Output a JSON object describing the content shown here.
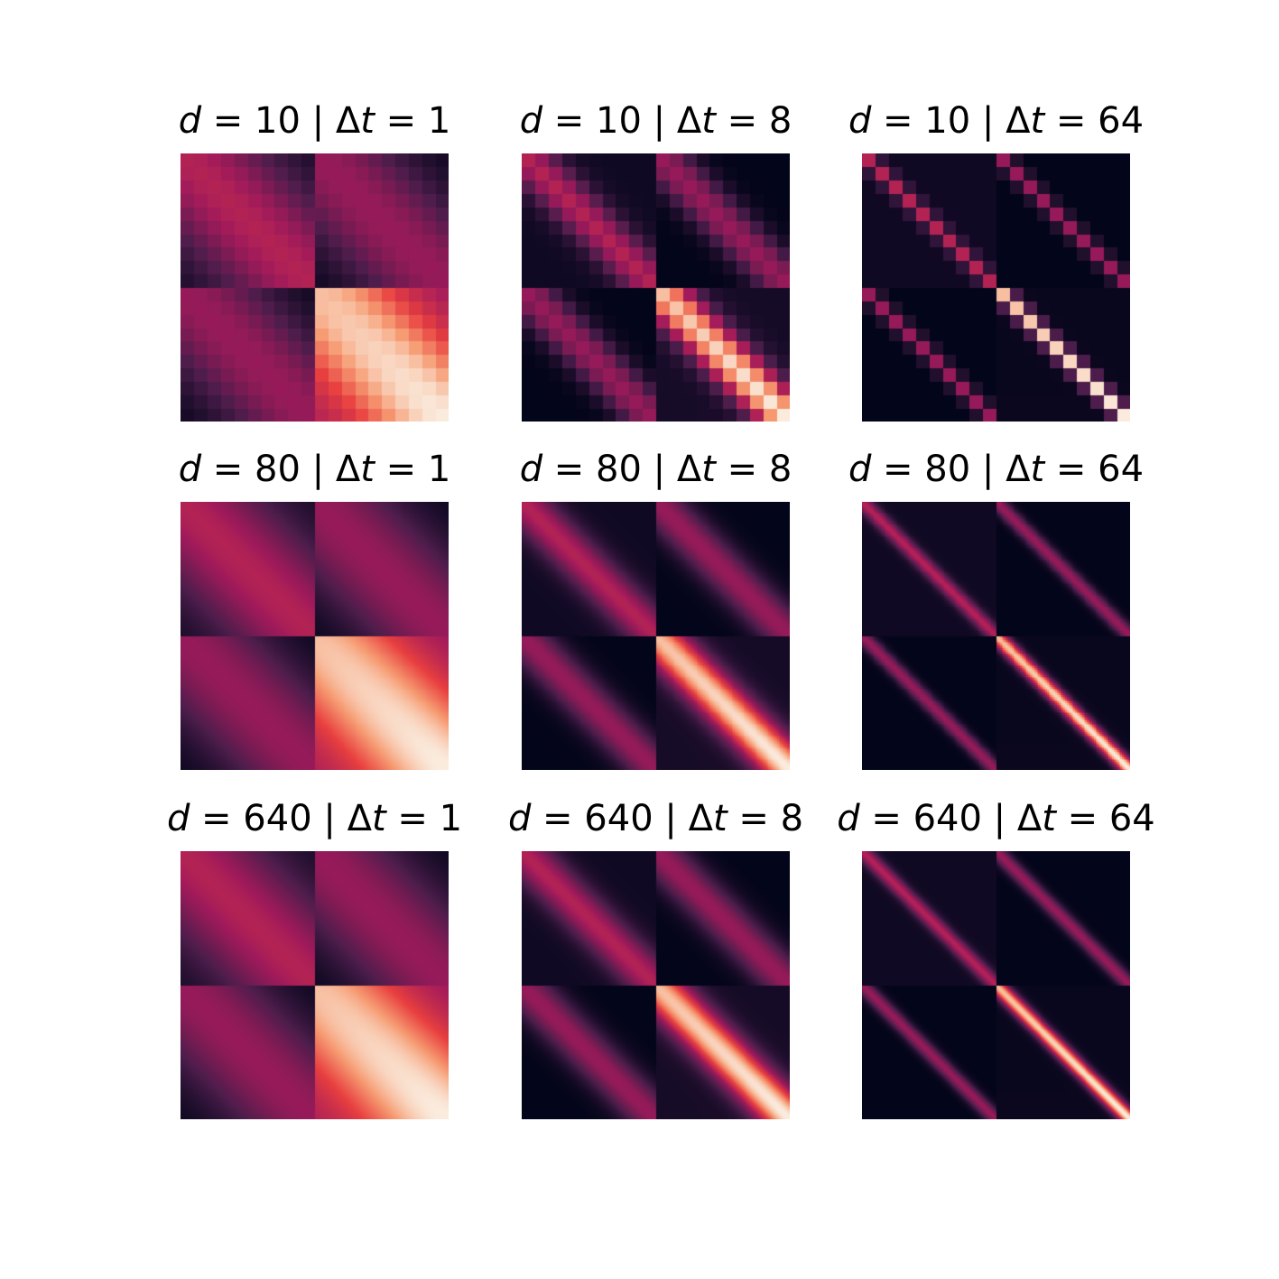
{
  "chart_data": {
    "type": "heatmap",
    "layout": {
      "rows": 3,
      "cols": 3
    },
    "colormap": "rocket",
    "colormap_stops": [
      "#03051a",
      "#4c1d4b",
      "#a11a5b",
      "#e83f3f",
      "#f69c73",
      "#faebdd"
    ],
    "axes_visible": false,
    "panels": [
      {
        "d_label": "10",
        "dt_label": "1",
        "d": 10,
        "dt": 1
      },
      {
        "d_label": "10",
        "dt_label": "8",
        "d": 10,
        "dt": 8
      },
      {
        "d_label": "10",
        "dt_label": "64",
        "d": 10,
        "dt": 64
      },
      {
        "d_label": "80",
        "dt_label": "1",
        "d": 80,
        "dt": 1
      },
      {
        "d_label": "80",
        "dt_label": "8",
        "d": 80,
        "dt": 8
      },
      {
        "d_label": "80",
        "dt_label": "64",
        "d": 80,
        "dt": 64
      },
      {
        "d_label": "640",
        "dt_label": "1",
        "d": 640,
        "dt": 1
      },
      {
        "d_label": "640",
        "dt_label": "8",
        "d": 640,
        "dt": 8
      },
      {
        "d_label": "640",
        "dt_label": "64",
        "d": 640,
        "dt": 64
      }
    ]
  }
}
